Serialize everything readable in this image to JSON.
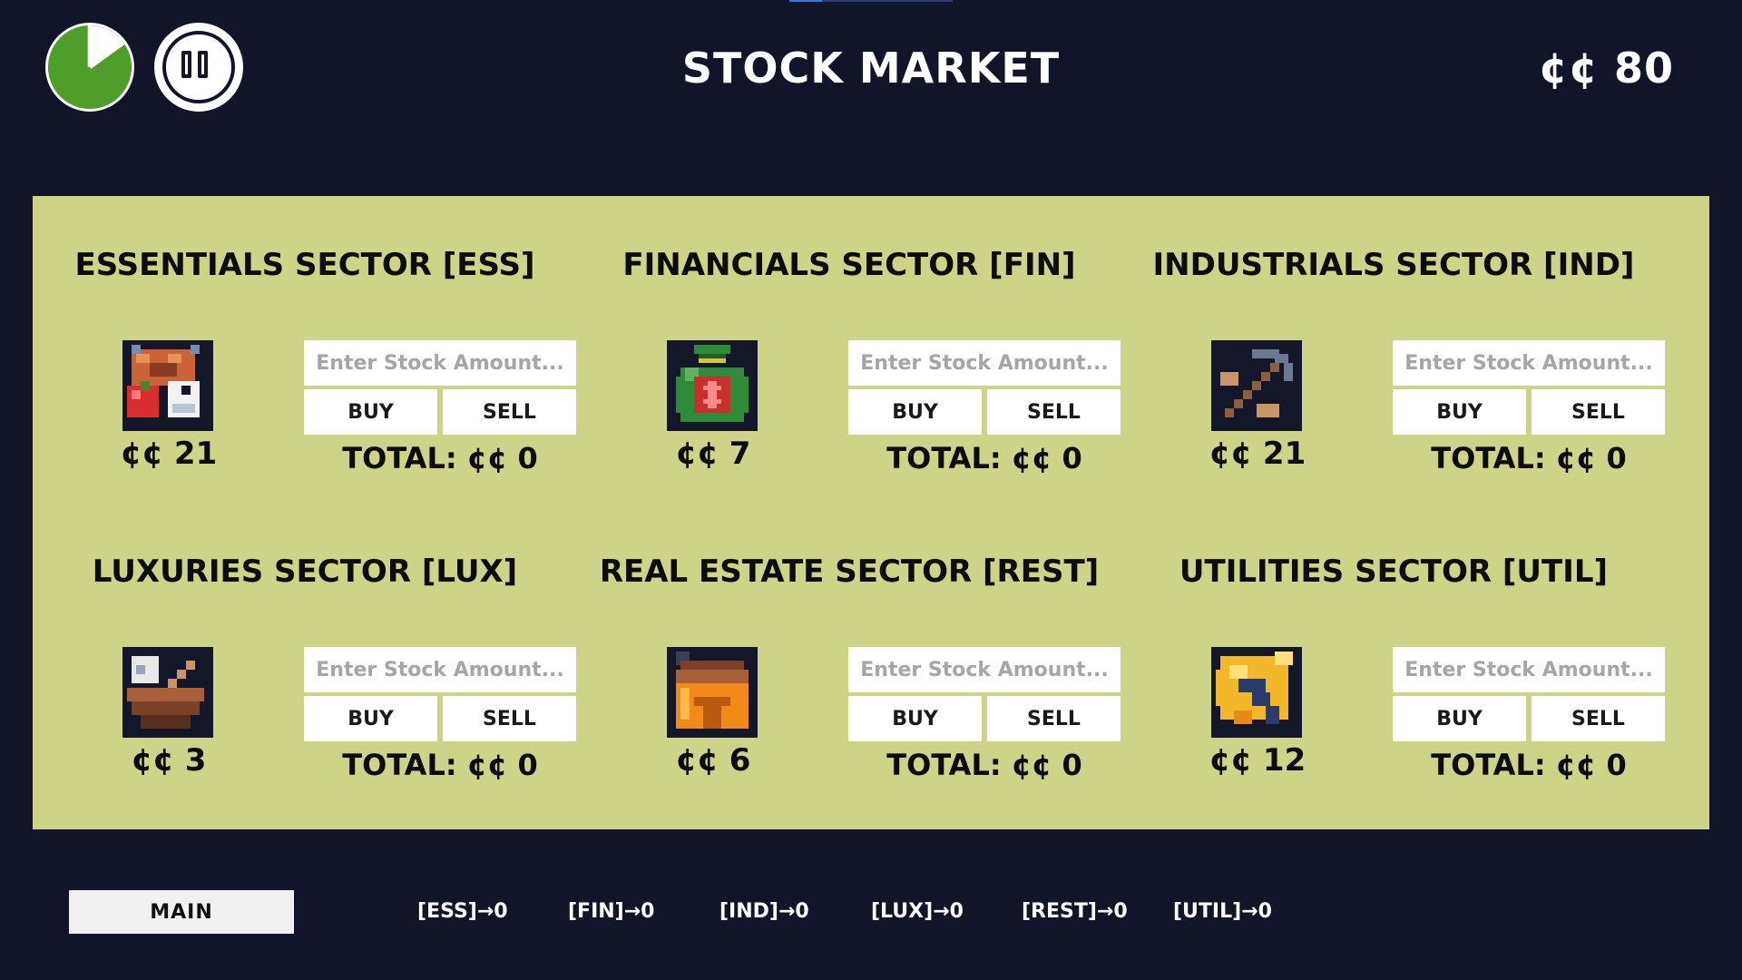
{
  "header": {
    "title": "STOCK MARKET",
    "balance": "¢¢ 80"
  },
  "timer": {
    "elapsed_fraction": 0.15
  },
  "sectors": [
    {
      "title": "ESSENTIALS SECTOR [ESS]",
      "price": "¢¢ 21",
      "placeholder": "Enter Stock Amount...",
      "buy_label": "BUY",
      "sell_label": "SELL",
      "total": "TOTAL: ¢¢ 0",
      "icon": "food-basket-icon"
    },
    {
      "title": "FINANCIALS SECTOR [FIN]",
      "price": "¢¢ 7",
      "placeholder": "Enter Stock Amount...",
      "buy_label": "BUY",
      "sell_label": "SELL",
      "total": "TOTAL: ¢¢ 0",
      "icon": "money-bag-icon"
    },
    {
      "title": "INDUSTRIALS SECTOR [IND]",
      "price": "¢¢ 21",
      "placeholder": "Enter Stock Amount...",
      "buy_label": "BUY",
      "sell_label": "SELL",
      "total": "TOTAL: ¢¢ 0",
      "icon": "pickaxe-icon"
    },
    {
      "title": "LUXURIES SECTOR [LUX]",
      "price": "¢¢ 3",
      "placeholder": "Enter Stock Amount...",
      "buy_label": "BUY",
      "sell_label": "SELL",
      "total": "TOTAL: ¢¢ 0",
      "icon": "coconut-icon"
    },
    {
      "title": "REAL ESTATE SECTOR [REST]",
      "price": "¢¢ 6",
      "placeholder": "Enter Stock Amount...",
      "buy_label": "BUY",
      "sell_label": "SELL",
      "total": "TOTAL: ¢¢ 0",
      "icon": "house-icon"
    },
    {
      "title": "UTILITIES SECTOR [UTIL]",
      "price": "¢¢ 12",
      "placeholder": "Enter Stock Amount...",
      "buy_label": "BUY",
      "sell_label": "SELL",
      "total": "TOTAL: ¢¢ 0",
      "icon": "lightning-icon"
    }
  ],
  "footer": {
    "main_tab": "MAIN",
    "holdings": [
      "[ESS]→0",
      "[FIN]→0",
      "[IND]→0",
      "[LUX]→0",
      "[REST]→0",
      "[UTIL]→0"
    ]
  }
}
